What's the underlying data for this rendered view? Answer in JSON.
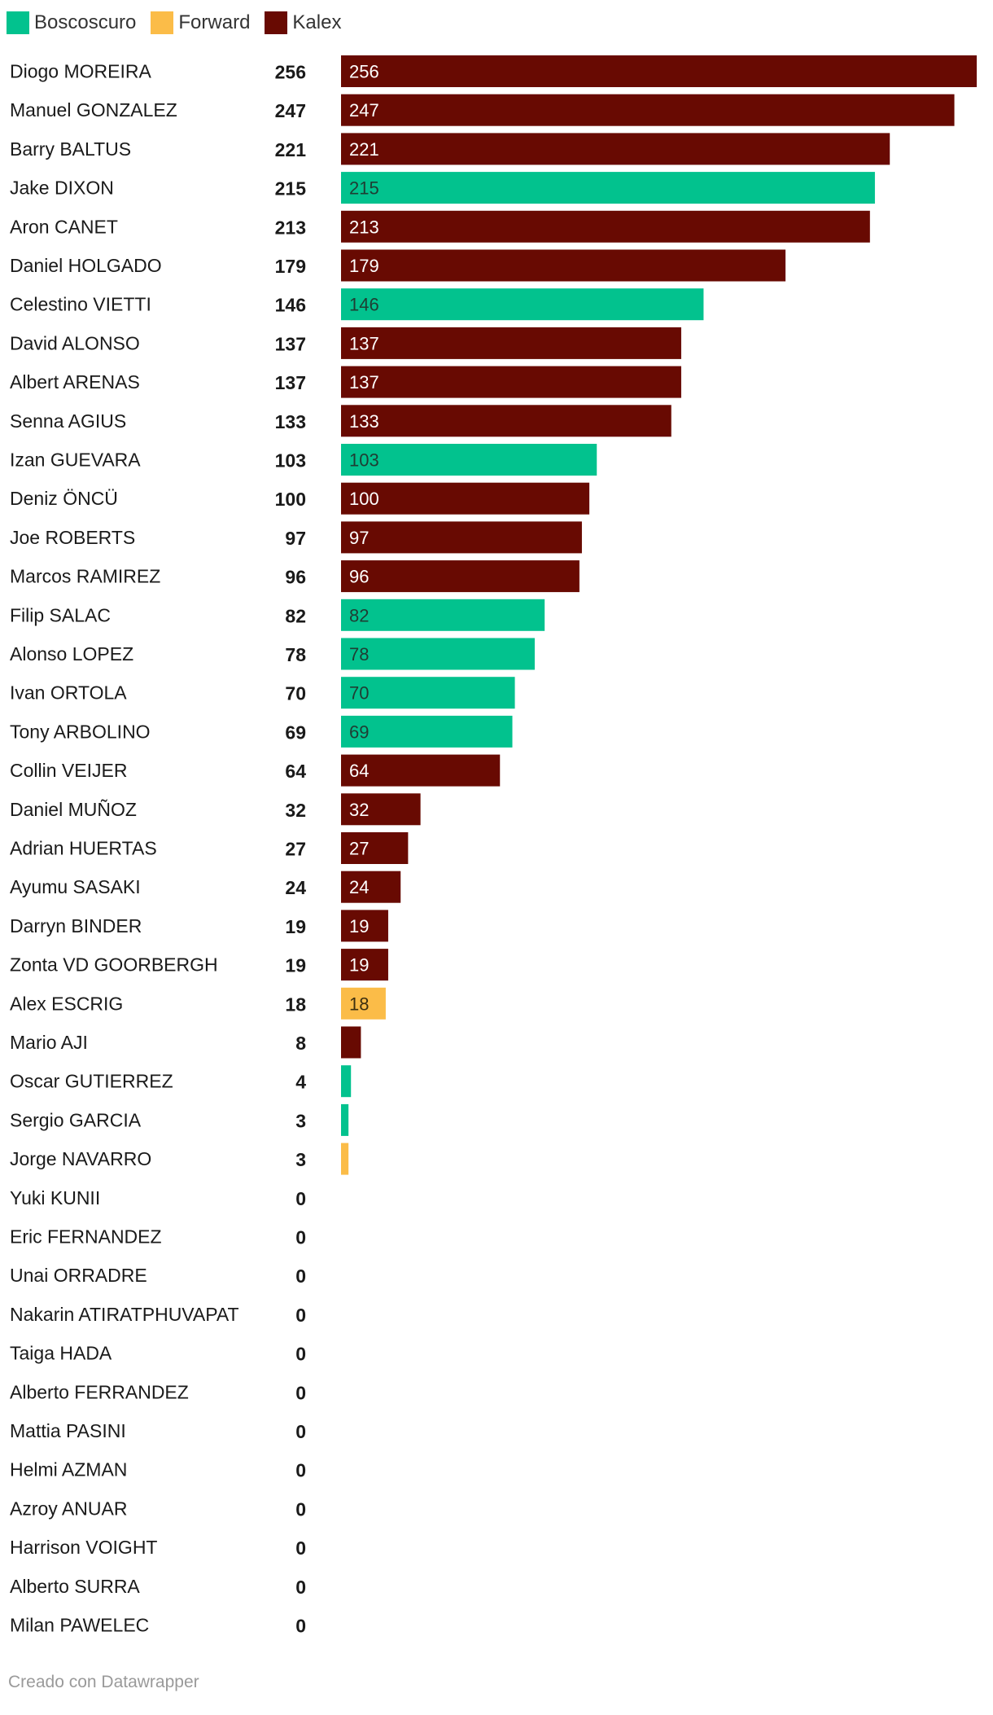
{
  "chart_data": {
    "type": "bar",
    "orientation": "horizontal",
    "legend": [
      {
        "name": "Boscoscuro",
        "color": "#02c28e"
      },
      {
        "name": "Forward",
        "color": "#fbbc48"
      },
      {
        "name": "Kalex",
        "color": "#680a02"
      }
    ],
    "rows": [
      {
        "label": "Diogo MOREIRA",
        "value": 256,
        "series": "Kalex"
      },
      {
        "label": "Manuel GONZALEZ",
        "value": 247,
        "series": "Kalex"
      },
      {
        "label": "Barry BALTUS",
        "value": 221,
        "series": "Kalex"
      },
      {
        "label": "Jake DIXON",
        "value": 215,
        "series": "Boscoscuro"
      },
      {
        "label": "Aron CANET",
        "value": 213,
        "series": "Kalex"
      },
      {
        "label": "Daniel HOLGADO",
        "value": 179,
        "series": "Kalex"
      },
      {
        "label": "Celestino VIETTI",
        "value": 146,
        "series": "Boscoscuro"
      },
      {
        "label": "David ALONSO",
        "value": 137,
        "series": "Kalex"
      },
      {
        "label": "Albert ARENAS",
        "value": 137,
        "series": "Kalex"
      },
      {
        "label": "Senna AGIUS",
        "value": 133,
        "series": "Kalex"
      },
      {
        "label": "Izan GUEVARA",
        "value": 103,
        "series": "Boscoscuro"
      },
      {
        "label": "Deniz ÖNCÜ",
        "value": 100,
        "series": "Kalex"
      },
      {
        "label": "Joe ROBERTS",
        "value": 97,
        "series": "Kalex"
      },
      {
        "label": "Marcos RAMIREZ",
        "value": 96,
        "series": "Kalex"
      },
      {
        "label": "Filip SALAC",
        "value": 82,
        "series": "Boscoscuro"
      },
      {
        "label": "Alonso LOPEZ",
        "value": 78,
        "series": "Boscoscuro"
      },
      {
        "label": "Ivan ORTOLA",
        "value": 70,
        "series": "Boscoscuro"
      },
      {
        "label": "Tony ARBOLINO",
        "value": 69,
        "series": "Boscoscuro"
      },
      {
        "label": "Collin VEIJER",
        "value": 64,
        "series": "Kalex"
      },
      {
        "label": "Daniel MUÑOZ",
        "value": 32,
        "series": "Kalex"
      },
      {
        "label": "Adrian HUERTAS",
        "value": 27,
        "series": "Kalex"
      },
      {
        "label": "Ayumu SASAKI",
        "value": 24,
        "series": "Kalex"
      },
      {
        "label": "Darryn BINDER",
        "value": 19,
        "series": "Kalex"
      },
      {
        "label": "Zonta VD GOORBERGH",
        "value": 19,
        "series": "Kalex"
      },
      {
        "label": "Alex ESCRIG",
        "value": 18,
        "series": "Forward"
      },
      {
        "label": "Mario AJI",
        "value": 8,
        "series": "Kalex"
      },
      {
        "label": "Oscar GUTIERREZ",
        "value": 4,
        "series": "Boscoscuro"
      },
      {
        "label": "Sergio GARCIA",
        "value": 3,
        "series": "Boscoscuro"
      },
      {
        "label": "Jorge NAVARRO",
        "value": 3,
        "series": "Forward"
      },
      {
        "label": "Yuki KUNII",
        "value": 0,
        "series": null
      },
      {
        "label": "Eric FERNANDEZ",
        "value": 0,
        "series": null
      },
      {
        "label": "Unai ORRADRE",
        "value": 0,
        "series": null
      },
      {
        "label": "Nakarin ATIRATPHUVAPAT",
        "value": 0,
        "series": null
      },
      {
        "label": "Taiga HADA",
        "value": 0,
        "series": null
      },
      {
        "label": "Alberto FERRANDEZ",
        "value": 0,
        "series": null
      },
      {
        "label": "Mattia PASINI",
        "value": 0,
        "series": null
      },
      {
        "label": "Helmi AZMAN",
        "value": 0,
        "series": null
      },
      {
        "label": "Azroy ANUAR",
        "value": 0,
        "series": null
      },
      {
        "label": "Harrison VOIGHT",
        "value": 0,
        "series": null
      },
      {
        "label": "Alberto SURRA",
        "value": 0,
        "series": null
      },
      {
        "label": "Milan PAWELEC",
        "value": 0,
        "series": null
      }
    ],
    "xlim": [
      0,
      256
    ],
    "grid": false,
    "legend_position": "top-left"
  },
  "footer": {
    "credit": "Creado con Datawrapper"
  }
}
